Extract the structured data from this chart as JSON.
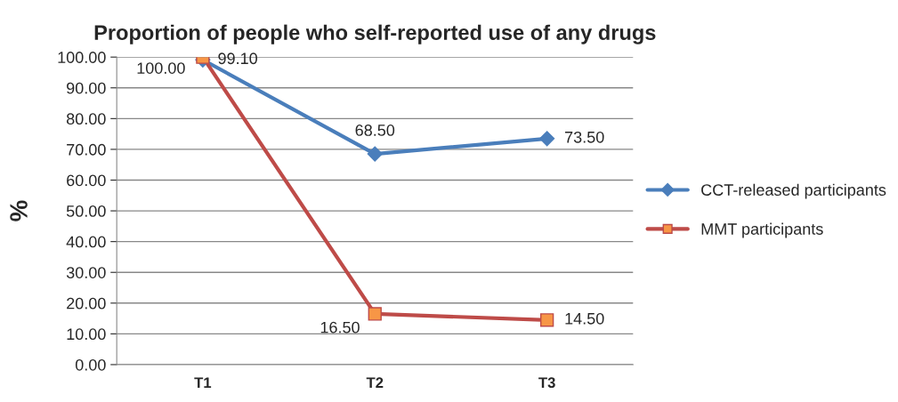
{
  "chart_data": {
    "type": "line",
    "title": "Proportion of people who self-reported use of any drugs",
    "ylabel": "%",
    "categories": [
      "T1",
      "T2",
      "T3"
    ],
    "series": [
      {
        "name": "CCT-released participants",
        "color": "#4a7ebb",
        "marker": "diamond",
        "values": [
          99.1,
          68.5,
          73.5
        ],
        "value_labels": [
          "99.10",
          "68.50",
          "73.50"
        ]
      },
      {
        "name": "MMT participants",
        "color": "#be4b48",
        "marker": "square",
        "values": [
          100.0,
          16.5,
          14.5
        ],
        "value_labels": [
          "100.00",
          "16.50",
          "14.50"
        ]
      }
    ],
    "ylim": [
      0,
      100
    ],
    "yticks": [
      {
        "value": 0,
        "label": "0.00"
      },
      {
        "value": 10,
        "label": "10.00"
      },
      {
        "value": 20,
        "label": "20.00"
      },
      {
        "value": 30,
        "label": "30.00"
      },
      {
        "value": 40,
        "label": "40.00"
      },
      {
        "value": 50,
        "label": "50.00"
      },
      {
        "value": 60,
        "label": "60.00"
      },
      {
        "value": 70,
        "label": "70.00"
      },
      {
        "value": 80,
        "label": "80.00"
      },
      {
        "value": 90,
        "label": "90.00"
      },
      {
        "value": 100,
        "label": "100.00"
      }
    ],
    "grid": "y",
    "legend": "right"
  }
}
